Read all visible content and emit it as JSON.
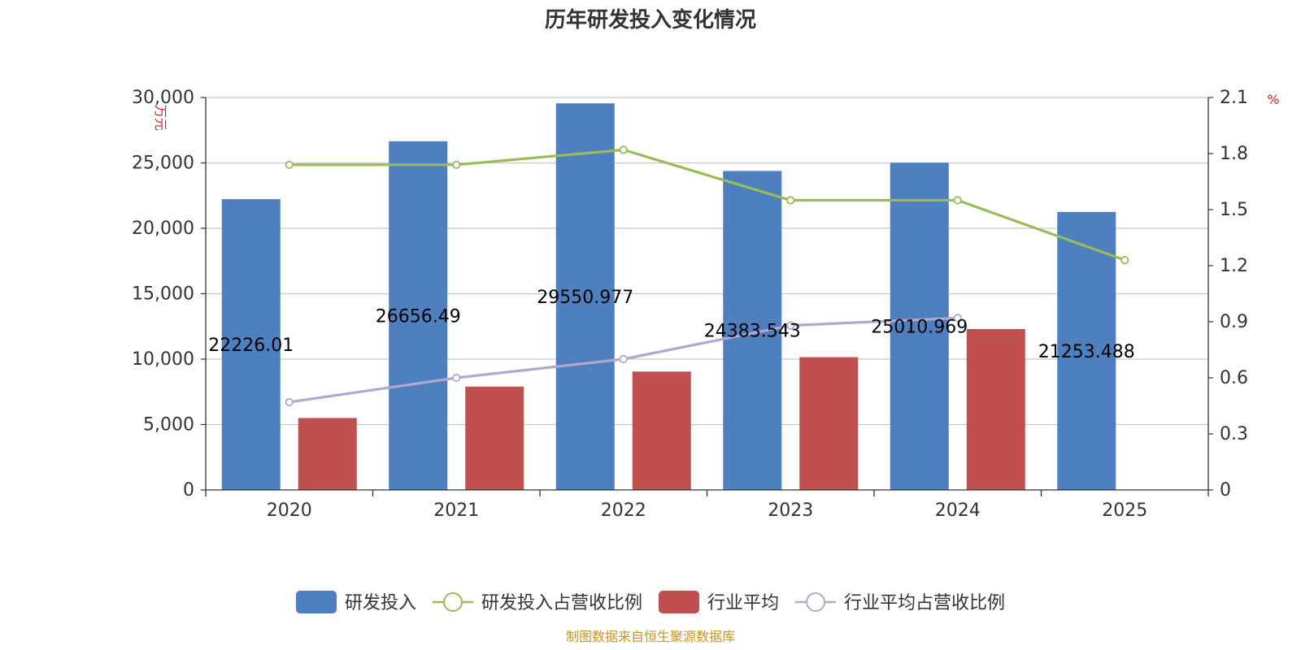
{
  "chart_data": {
    "type": "bar",
    "title": "历年研发投入变化情况",
    "categories": [
      "2020",
      "2021",
      "2022",
      "2023",
      "2024",
      "2025"
    ],
    "y_left": {
      "unit": "万元",
      "ylim": [
        0,
        30000
      ],
      "ticks": [
        "0",
        "5,000",
        "10,000",
        "15,000",
        "20,000",
        "25,000",
        "30,000"
      ],
      "tick_values": [
        0,
        5000,
        10000,
        15000,
        20000,
        25000,
        30000
      ]
    },
    "y_right": {
      "unit": "%",
      "ylim": [
        0,
        2.1
      ],
      "ticks": [
        "0",
        "0.3",
        "0.6",
        "0.9",
        "1.2",
        "1.5",
        "1.8",
        "2.1"
      ],
      "tick_values": [
        0,
        0.3,
        0.6,
        0.9,
        1.2,
        1.5,
        1.8,
        2.1
      ]
    },
    "series": [
      {
        "name": "研发投入",
        "kind": "bar",
        "axis": "left",
        "color": "#4e7fbf",
        "values": [
          22226.01,
          26656.49,
          29550.977,
          24383.543,
          25010.969,
          21253.488
        ],
        "labels": [
          "22226.01",
          "26656.49",
          "29550.977",
          "24383.543",
          "25010.969",
          "21253.488"
        ]
      },
      {
        "name": "研发投入占营收比例",
        "kind": "line",
        "axis": "right",
        "color": "#9bbb59",
        "values": [
          1.74,
          1.74,
          1.82,
          1.55,
          1.55,
          1.23
        ]
      },
      {
        "name": "行业平均",
        "kind": "bar",
        "axis": "left",
        "color": "#c0504d",
        "values": [
          5500,
          7900,
          9050,
          10150,
          12300,
          null
        ]
      },
      {
        "name": "行业平均占营收比例",
        "kind": "line",
        "axis": "right",
        "color": "#b3a6d1",
        "values": [
          0.47,
          0.6,
          0.7,
          0.88,
          0.92,
          null
        ]
      }
    ],
    "grid": true,
    "legend_position": "bottom"
  },
  "source_note": "制图数据来自恒生聚源数据库"
}
